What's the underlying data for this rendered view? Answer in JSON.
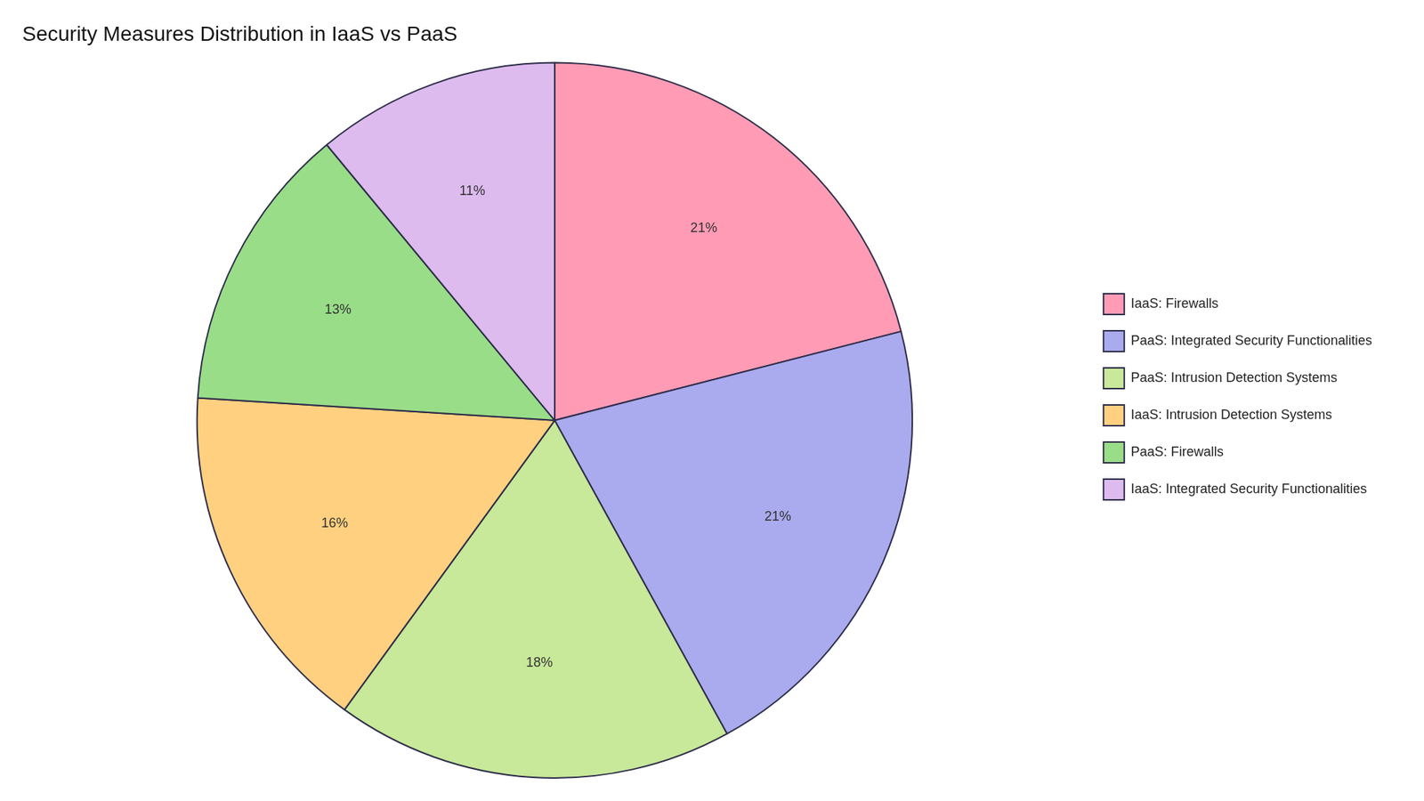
{
  "chart_data": {
    "type": "pie",
    "title": "Security Measures Distribution in IaaS vs PaaS",
    "categories": [
      "IaaS: Firewalls",
      "PaaS: Integrated Security Functionalities",
      "PaaS: Intrusion Detection Systems",
      "IaaS: Intrusion Detection Systems",
      "PaaS: Firewalls",
      "IaaS: Integrated Security Functionalities"
    ],
    "values": [
      21,
      21,
      18,
      16,
      13,
      11
    ],
    "value_labels": [
      "21%",
      "21%",
      "18%",
      "16%",
      "13%",
      "11%"
    ],
    "colors": [
      "#FF9BB5",
      "#AAAAEE",
      "#C8E89A",
      "#FFD080",
      "#99DD88",
      "#DDBBEE"
    ],
    "data_labels": true,
    "legend": "right"
  }
}
